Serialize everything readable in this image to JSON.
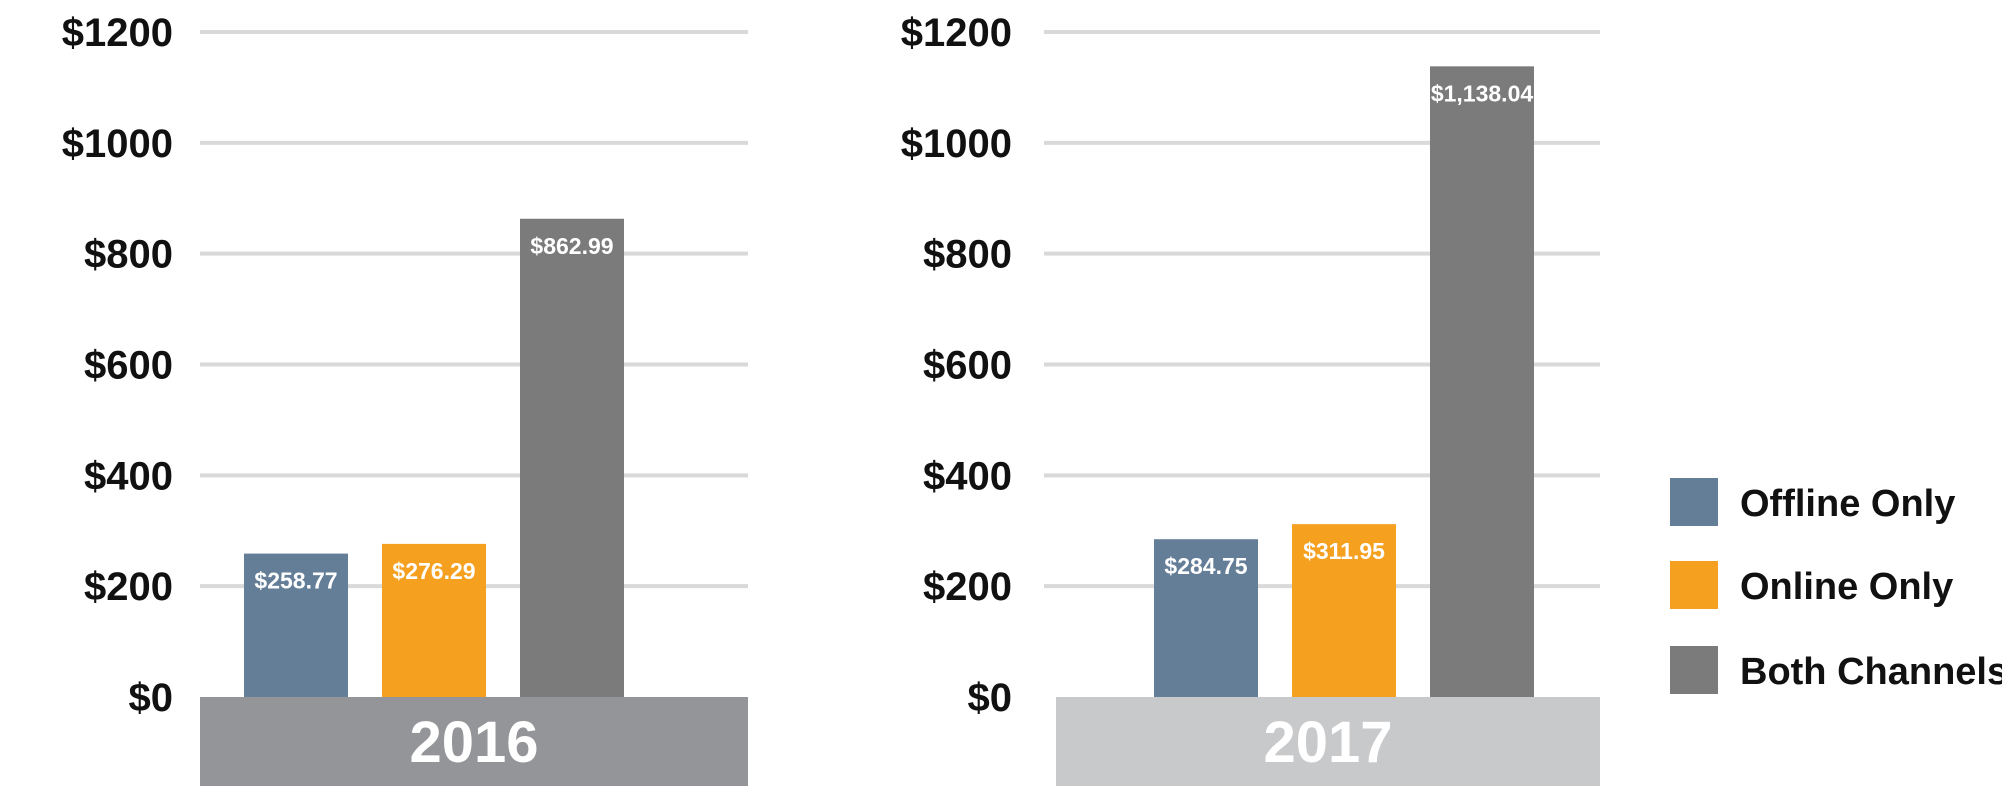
{
  "chart_data": [
    {
      "type": "bar",
      "title": "2016",
      "categories": [
        "Offline Only",
        "Online Only",
        "Both Channels"
      ],
      "values": [
        258.77,
        276.29,
        862.99
      ],
      "value_labels": [
        "$258.77",
        "$276.29",
        "$862.99"
      ],
      "ylim": [
        0,
        1200
      ],
      "yticks": [
        0,
        200,
        400,
        600,
        800,
        1000,
        1200
      ],
      "ytick_labels": [
        "$0",
        "$200",
        "$400",
        "$600",
        "$800",
        "$1000",
        "$1200"
      ],
      "grid": true
    },
    {
      "type": "bar",
      "title": "2017",
      "categories": [
        "Offline Only",
        "Online Only",
        "Both Channels"
      ],
      "values": [
        284.75,
        311.95,
        1138.04
      ],
      "value_labels": [
        "$284.75",
        "$311.95",
        "$1,138.04"
      ],
      "ylim": [
        0,
        1200
      ],
      "yticks": [
        0,
        200,
        400,
        600,
        800,
        1000,
        1200
      ],
      "ytick_labels": [
        "$0",
        "$200",
        "$400",
        "$600",
        "$800",
        "$1000",
        "$1200"
      ],
      "grid": true
    }
  ],
  "legend": {
    "position": "bottom-right",
    "items": [
      {
        "label": "Offline Only",
        "color": "#657e98"
      },
      {
        "label": "Online Only",
        "color": "#f6a01f"
      },
      {
        "label": "Both Channels",
        "color": "#7b7b7b"
      }
    ]
  },
  "colors": {
    "band_2016": "#939598",
    "band_2017": "#c8c9cb",
    "gridline": "#d9d9d9"
  }
}
